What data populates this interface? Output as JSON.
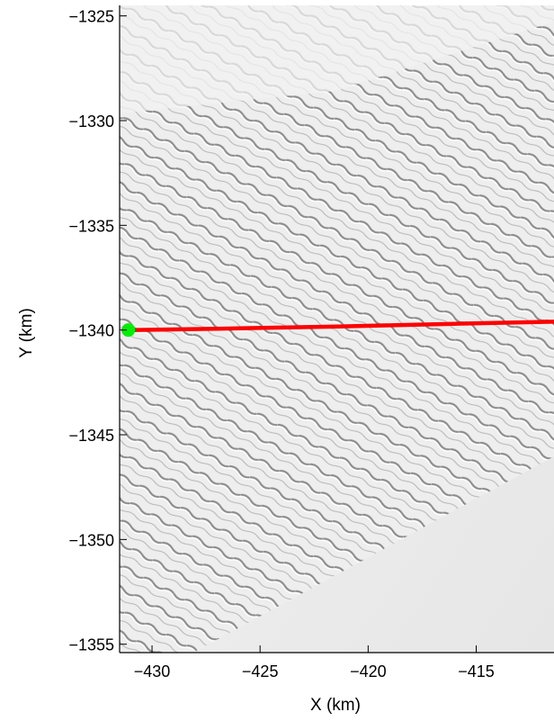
{
  "chart_data": {
    "type": "map",
    "xlabel": "X (km)",
    "ylabel": "Y (km)",
    "xlim": [
      -431.5,
      -411.4
    ],
    "ylim": [
      -1355.4,
      -1324.5
    ],
    "x_ticks": [
      -430,
      -425,
      -420,
      -415
    ],
    "x_tick_labels": [
      "−430",
      "−425",
      "−420",
      "−415"
    ],
    "y_ticks": [
      -1325,
      -1330,
      -1335,
      -1340,
      -1345,
      -1350,
      -1355
    ],
    "y_tick_labels": [
      "−1325",
      "−1330",
      "−1335",
      "−1340",
      "−1345",
      "−1350",
      "−1355"
    ],
    "background": "shaded-relief image of wave-like ridged terrain; featureless smooth region in the lower-right corner",
    "series": [
      {
        "type": "line",
        "color": "#ff0000",
        "x": [
          -431.1,
          -426.0,
          -421.0,
          -416.0,
          -411.4
        ],
        "y": [
          -1340.0,
          -1339.92,
          -1339.82,
          -1339.7,
          -1339.6
        ]
      }
    ],
    "markers": [
      {
        "x": -431.1,
        "y": -1340.0,
        "color": "#00ee00",
        "shape": "circle"
      }
    ],
    "grid": false,
    "legend": "none"
  }
}
